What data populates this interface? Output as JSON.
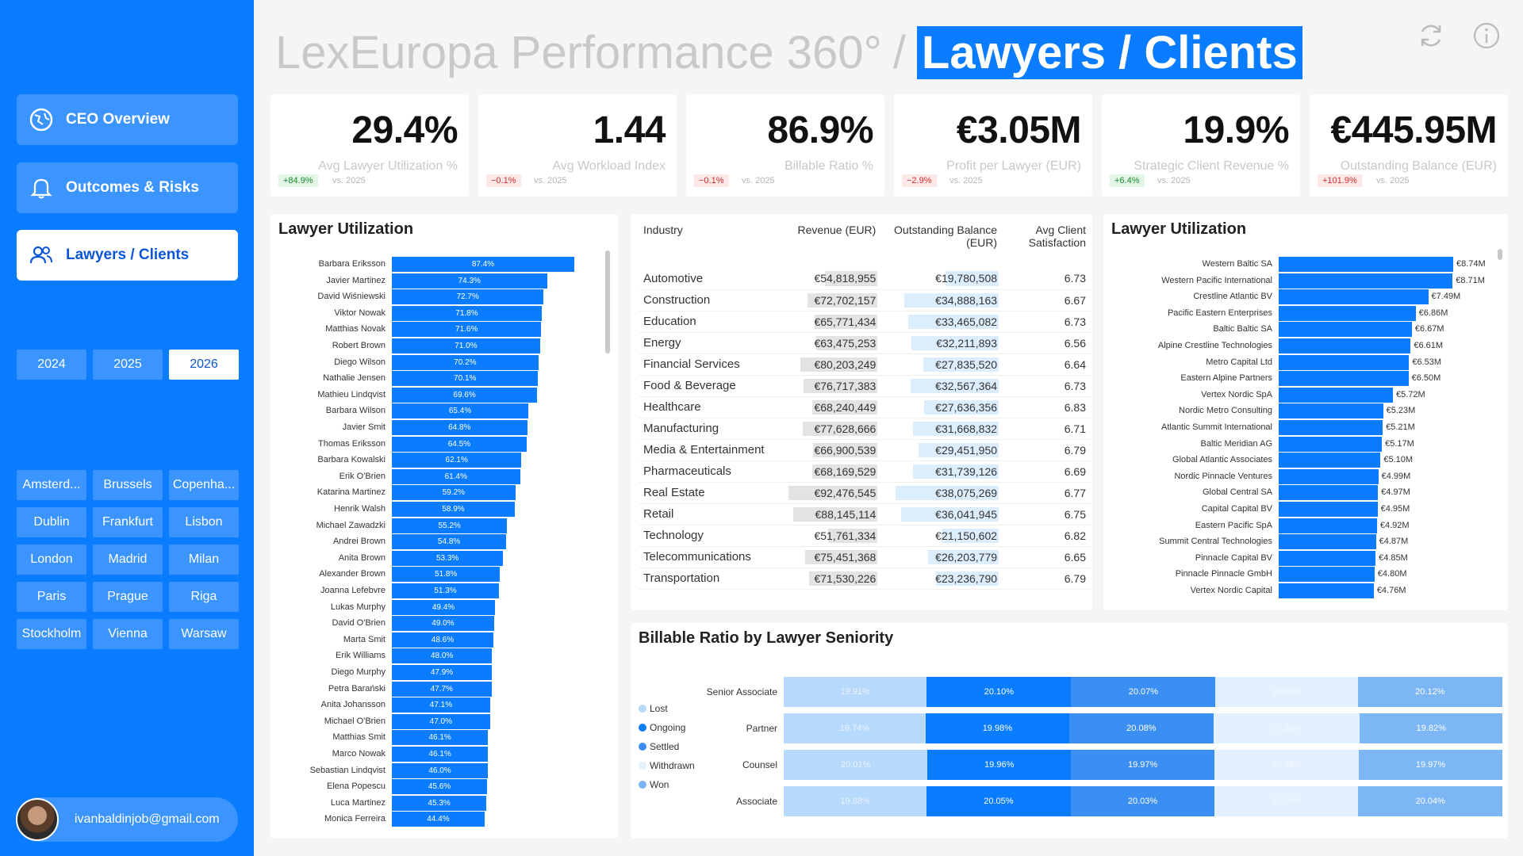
{
  "sidebar": {
    "nav": [
      {
        "label": "CEO Overview",
        "icon": "globe-icon",
        "active": false
      },
      {
        "label": "Outcomes & Risks",
        "icon": "bell-icon",
        "active": false
      },
      {
        "label": "Lawyers / Clients",
        "icon": "users-icon",
        "active": true
      }
    ],
    "years": [
      {
        "label": "2024",
        "active": false
      },
      {
        "label": "2025",
        "active": false
      },
      {
        "label": "2026",
        "active": true
      }
    ],
    "cities": [
      "Amsterd...",
      "Brussels",
      "Copenha...",
      "Dublin",
      "Frankfurt",
      "Lisbon",
      "London",
      "Madrid",
      "Milan",
      "Paris",
      "Prague",
      "Riga",
      "Stockholm",
      "Vienna",
      "Warsaw"
    ],
    "user_email": "ivanbaldinjob@gmail.com"
  },
  "header": {
    "title_prefix": "LexEuropa Performance 360°",
    "separator": "/",
    "title_page": "Lawyers / Clients",
    "icons": [
      "refresh-icon",
      "info-icon"
    ]
  },
  "kpis": [
    {
      "value": "29.4%",
      "label": "Avg Lawyer Utilization %",
      "delta": "+84.9%",
      "delta_dir": "pos",
      "vs": "vs. 2025"
    },
    {
      "value": "1.44",
      "label": "Avg Workload Index",
      "delta": "−0.1%",
      "delta_dir": "neg",
      "vs": "vs. 2025"
    },
    {
      "value": "86.9%",
      "label": "Billable Ratio %",
      "delta": "−0.1%",
      "delta_dir": "neg",
      "vs": "vs. 2025"
    },
    {
      "value": "€3.05M",
      "label": "Profit per Lawyer (EUR)",
      "delta": "−2.9%",
      "delta_dir": "neg",
      "vs": "vs. 2025"
    },
    {
      "value": "19.9%",
      "label": "Strategic Client Revenue %",
      "delta": "+6.4%",
      "delta_dir": "pos",
      "vs": "vs. 2025"
    },
    {
      "value": "€445.95M",
      "label": "Outstanding Balance (EUR)",
      "delta": "+101.9%",
      "delta_dir": "neg",
      "vs": "vs. 2025"
    }
  ],
  "colors": {
    "accent": "#0a7cff",
    "sidebar": "#0a7cff",
    "button": "#3c95ff"
  },
  "lawyer_util": {
    "title": "Lawyer Utilization",
    "rows": [
      {
        "name": "Barbara Eriksson",
        "value": 87.4,
        "label": "87.4%"
      },
      {
        "name": "Javier Martinez",
        "value": 74.3,
        "label": "74.3%"
      },
      {
        "name": "David Wiśniewski",
        "value": 72.7,
        "label": "72.7%"
      },
      {
        "name": "Viktor Nowak",
        "value": 71.8,
        "label": "71.8%"
      },
      {
        "name": "Matthias Novak",
        "value": 71.6,
        "label": "71.6%"
      },
      {
        "name": "Robert Brown",
        "value": 71.0,
        "label": "71.0%"
      },
      {
        "name": "Diego Wilson",
        "value": 70.2,
        "label": "70.2%"
      },
      {
        "name": "Nathalie Jensen",
        "value": 70.1,
        "label": "70.1%"
      },
      {
        "name": "Mathieu Lindqvist",
        "value": 69.6,
        "label": "69.6%"
      },
      {
        "name": "Barbara Wilson",
        "value": 65.4,
        "label": "65.4%"
      },
      {
        "name": "Javier Smit",
        "value": 64.8,
        "label": "64.8%"
      },
      {
        "name": "Thomas Eriksson",
        "value": 64.5,
        "label": "64.5%"
      },
      {
        "name": "Barbara Kowalski",
        "value": 62.1,
        "label": "62.1%"
      },
      {
        "name": "Erik O'Brien",
        "value": 61.4,
        "label": "61.4%"
      },
      {
        "name": "Katarina Martinez",
        "value": 59.2,
        "label": "59.2%"
      },
      {
        "name": "Henrik Walsh",
        "value": 58.9,
        "label": "58.9%"
      },
      {
        "name": "Michael Zawadzki",
        "value": 55.2,
        "label": "55.2%"
      },
      {
        "name": "Andrei Brown",
        "value": 54.8,
        "label": "54.8%"
      },
      {
        "name": "Anita Brown",
        "value": 53.3,
        "label": "53.3%"
      },
      {
        "name": "Alexander Brown",
        "value": 51.8,
        "label": "51.8%"
      },
      {
        "name": "Joanna Lefebvre",
        "value": 51.3,
        "label": "51.3%"
      },
      {
        "name": "Lukas Murphy",
        "value": 49.4,
        "label": "49.4%"
      },
      {
        "name": "David O'Brien",
        "value": 49.0,
        "label": "49.0%"
      },
      {
        "name": "Marta Smit",
        "value": 48.6,
        "label": "48.6%"
      },
      {
        "name": "Erik Williams",
        "value": 48.0,
        "label": "48.0%"
      },
      {
        "name": "Diego Murphy",
        "value": 47.9,
        "label": "47.9%"
      },
      {
        "name": "Petra Barański",
        "value": 47.7,
        "label": "47.7%"
      },
      {
        "name": "Anita Johansson",
        "value": 47.1,
        "label": "47.1%"
      },
      {
        "name": "Michael O'Brien",
        "value": 47.0,
        "label": "47.0%"
      },
      {
        "name": "Matthias Smit",
        "value": 46.1,
        "label": "46.1%"
      },
      {
        "name": "Marco Nowak",
        "value": 46.1,
        "label": "46.1%"
      },
      {
        "name": "Sebastian Lindqvist",
        "value": 46.0,
        "label": "46.0%"
      },
      {
        "name": "Elena Popescu",
        "value": 45.6,
        "label": "45.6%"
      },
      {
        "name": "Luca Martinez",
        "value": 45.3,
        "label": "45.3%"
      },
      {
        "name": "Monica Ferreira",
        "value": 44.4,
        "label": "44.4%"
      }
    ]
  },
  "industry_table": {
    "headers": [
      "Industry",
      "Revenue (EUR)",
      "Outstanding Balance (EUR)",
      "Avg Client Satisfaction"
    ],
    "rows": [
      {
        "industry": "Automotive",
        "revenue": "€54,818,955",
        "revenue_num": 54.82,
        "balance": "€19,780,508",
        "balance_num": 19.78,
        "sat": "6.73"
      },
      {
        "industry": "Construction",
        "revenue": "€72,702,157",
        "revenue_num": 72.7,
        "balance": "€34,888,163",
        "balance_num": 34.89,
        "sat": "6.67"
      },
      {
        "industry": "Education",
        "revenue": "€65,771,434",
        "revenue_num": 65.77,
        "balance": "€33,465,082",
        "balance_num": 33.47,
        "sat": "6.73"
      },
      {
        "industry": "Energy",
        "revenue": "€63,475,253",
        "revenue_num": 63.48,
        "balance": "€32,211,893",
        "balance_num": 32.21,
        "sat": "6.56"
      },
      {
        "industry": "Financial Services",
        "revenue": "€80,203,249",
        "revenue_num": 80.2,
        "balance": "€27,835,520",
        "balance_num": 27.84,
        "sat": "6.64"
      },
      {
        "industry": "Food & Beverage",
        "revenue": "€76,717,383",
        "revenue_num": 76.72,
        "balance": "€32,567,364",
        "balance_num": 32.57,
        "sat": "6.73"
      },
      {
        "industry": "Healthcare",
        "revenue": "€68,240,449",
        "revenue_num": 68.24,
        "balance": "€27,636,356",
        "balance_num": 27.64,
        "sat": "6.83"
      },
      {
        "industry": "Manufacturing",
        "revenue": "€77,628,666",
        "revenue_num": 77.63,
        "balance": "€31,668,832",
        "balance_num": 31.67,
        "sat": "6.71"
      },
      {
        "industry": "Media & Entertainment",
        "revenue": "€66,900,539",
        "revenue_num": 66.9,
        "balance": "€29,451,950",
        "balance_num": 29.45,
        "sat": "6.79"
      },
      {
        "industry": "Pharmaceuticals",
        "revenue": "€68,169,529",
        "revenue_num": 68.17,
        "balance": "€31,739,126",
        "balance_num": 31.74,
        "sat": "6.69"
      },
      {
        "industry": "Real Estate",
        "revenue": "€92,476,545",
        "revenue_num": 92.48,
        "balance": "€38,075,269",
        "balance_num": 38.08,
        "sat": "6.77"
      },
      {
        "industry": "Retail",
        "revenue": "€88,145,114",
        "revenue_num": 88.15,
        "balance": "€36,041,945",
        "balance_num": 36.04,
        "sat": "6.75"
      },
      {
        "industry": "Technology",
        "revenue": "€51,761,334",
        "revenue_num": 51.76,
        "balance": "€21,150,602",
        "balance_num": 21.15,
        "sat": "6.82"
      },
      {
        "industry": "Telecommunications",
        "revenue": "€75,451,368",
        "revenue_num": 75.45,
        "balance": "€26,203,779",
        "balance_num": 26.2,
        "sat": "6.65"
      },
      {
        "industry": "Transportation",
        "revenue": "€71,530,226",
        "revenue_num": 71.53,
        "balance": "€23,236,790",
        "balance_num": 23.24,
        "sat": "6.79"
      }
    ]
  },
  "client_balance": {
    "title": "Lawyer Utilization",
    "rows": [
      {
        "name": "Western Baltic SA",
        "value": 8.74,
        "label": "€8.74M"
      },
      {
        "name": "Western Pacific International",
        "value": 8.71,
        "label": "€8.71M"
      },
      {
        "name": "Crestline Atlantic BV",
        "value": 7.49,
        "label": "€7.49M"
      },
      {
        "name": "Pacific Eastern Enterprises",
        "value": 6.86,
        "label": "€6.86M"
      },
      {
        "name": "Baltic Baltic SA",
        "value": 6.67,
        "label": "€6.67M"
      },
      {
        "name": "Alpine Crestline Technologies",
        "value": 6.61,
        "label": "€6.61M"
      },
      {
        "name": "Metro Capital Ltd",
        "value": 6.53,
        "label": "€6.53M"
      },
      {
        "name": "Eastern Alpine Partners",
        "value": 6.5,
        "label": "€6.50M"
      },
      {
        "name": "Vertex Nordic SpA",
        "value": 5.72,
        "label": "€5.72M"
      },
      {
        "name": "Nordic Metro Consulting",
        "value": 5.23,
        "label": "€5.23M"
      },
      {
        "name": "Atlantic Summit International",
        "value": 5.21,
        "label": "€5.21M"
      },
      {
        "name": "Baltic Meridian AG",
        "value": 5.17,
        "label": "€5.17M"
      },
      {
        "name": "Global Atlantic Associates",
        "value": 5.1,
        "label": "€5.10M"
      },
      {
        "name": "Nordic Pinnacle Ventures",
        "value": 4.99,
        "label": "€4.99M"
      },
      {
        "name": "Global Central SA",
        "value": 4.97,
        "label": "€4.97M"
      },
      {
        "name": "Capital Capital BV",
        "value": 4.95,
        "label": "€4.95M"
      },
      {
        "name": "Eastern Pacific SpA",
        "value": 4.92,
        "label": "€4.92M"
      },
      {
        "name": "Summit Central Technologies",
        "value": 4.87,
        "label": "€4.87M"
      },
      {
        "name": "Pinnacle Capital BV",
        "value": 4.85,
        "label": "€4.85M"
      },
      {
        "name": "Pinnacle Pinnacle GmbH",
        "value": 4.8,
        "label": "€4.80M"
      },
      {
        "name": "Vertex Nordic Capital",
        "value": 4.76,
        "label": "€4.76M"
      }
    ]
  },
  "billable": {
    "title": "Billable Ratio by Lawyer Seniority",
    "legend": [
      {
        "name": "Lost",
        "color": "#b7d9fb"
      },
      {
        "name": "Ongoing",
        "color": "#0a7cff"
      },
      {
        "name": "Settled",
        "color": "#3c8ff2"
      },
      {
        "name": "Withdrawn",
        "color": "#e3f0fd"
      },
      {
        "name": "Won",
        "color": "#7cb6f5"
      }
    ],
    "series_order": [
      "Lost",
      "Ongoing",
      "Settled",
      "Withdrawn",
      "Won"
    ],
    "rows": [
      {
        "category": "Senior Associate",
        "values": [
          19.91,
          20.1,
          20.07,
          19.8,
          20.12
        ],
        "labels": [
          "19.91%",
          "20.10%",
          "20.07%",
          "19.80%",
          "20.12%"
        ]
      },
      {
        "category": "Partner",
        "values": [
          19.74,
          19.98,
          20.08,
          20.38,
          19.82
        ],
        "labels": [
          "19.74%",
          "19.98%",
          "20.08%",
          "20.38%",
          "19.82%"
        ]
      },
      {
        "category": "Counsel",
        "values": [
          20.01,
          19.96,
          19.97,
          20.08,
          19.97
        ],
        "labels": [
          "20.01%",
          "19.96%",
          "19.97%",
          "20.08%",
          "19.97%"
        ]
      },
      {
        "category": "Associate",
        "values": [
          19.88,
          20.05,
          20.03,
          20.0,
          20.04
        ],
        "labels": [
          "19.88%",
          "20.05%",
          "20.03%",
          "20.00%",
          "20.04%"
        ]
      }
    ]
  },
  "chart_data": [
    {
      "type": "bar",
      "title": "Lawyer Utilization",
      "orientation": "horizontal",
      "categories": [
        "Barbara Eriksson",
        "Javier Martinez",
        "David Wiśniewski",
        "Viktor Nowak",
        "Matthias Novak",
        "Robert Brown",
        "Diego Wilson",
        "Nathalie Jensen",
        "Mathieu Lindqvist",
        "Barbara Wilson",
        "Javier Smit",
        "Thomas Eriksson",
        "Barbara Kowalski",
        "Erik O'Brien",
        "Katarina Martinez",
        "Henrik Walsh",
        "Michael Zawadzki",
        "Andrei Brown",
        "Anita Brown",
        "Alexander Brown",
        "Joanna Lefebvre",
        "Lukas Murphy",
        "David O'Brien",
        "Marta Smit",
        "Erik Williams",
        "Diego Murphy",
        "Petra Barański",
        "Anita Johansson",
        "Michael O'Brien",
        "Matthias Smit",
        "Marco Nowak",
        "Sebastian Lindqvist",
        "Elena Popescu",
        "Luca Martinez",
        "Monica Ferreira"
      ],
      "values": [
        87.4,
        74.3,
        72.7,
        71.8,
        71.6,
        71.0,
        70.2,
        70.1,
        69.6,
        65.4,
        64.8,
        64.5,
        62.1,
        61.4,
        59.2,
        58.9,
        55.2,
        54.8,
        53.3,
        51.8,
        51.3,
        49.4,
        49.0,
        48.6,
        48.0,
        47.9,
        47.7,
        47.1,
        47.0,
        46.1,
        46.1,
        46.0,
        45.6,
        45.3,
        44.4
      ]
    },
    {
      "type": "bar",
      "title": "Lawyer Utilization",
      "orientation": "horizontal",
      "categories": [
        "Western Baltic SA",
        "Western Pacific International",
        "Crestline Atlantic BV",
        "Pacific Eastern Enterprises",
        "Baltic Baltic SA",
        "Alpine Crestline Technologies",
        "Metro Capital Ltd",
        "Eastern Alpine Partners",
        "Vertex Nordic SpA",
        "Nordic Metro Consulting",
        "Atlantic Summit International",
        "Baltic Meridian AG",
        "Global Atlantic Associates",
        "Nordic Pinnacle Ventures",
        "Global Central SA",
        "Capital Capital BV",
        "Eastern Pacific SpA",
        "Summit Central Technologies",
        "Pinnacle Capital BV",
        "Pinnacle Pinnacle GmbH",
        "Vertex Nordic Capital"
      ],
      "values": [
        8.74,
        8.71,
        7.49,
        6.86,
        6.67,
        6.61,
        6.53,
        6.5,
        5.72,
        5.23,
        5.21,
        5.17,
        5.1,
        4.99,
        4.97,
        4.95,
        4.92,
        4.87,
        4.85,
        4.8,
        4.76
      ]
    },
    {
      "type": "bar",
      "title": "Billable Ratio by Lawyer Seniority",
      "stacked": true,
      "orientation": "horizontal",
      "categories": [
        "Senior Associate",
        "Partner",
        "Counsel",
        "Associate"
      ],
      "series": [
        {
          "name": "Lost",
          "values": [
            19.91,
            19.74,
            20.01,
            19.88
          ]
        },
        {
          "name": "Ongoing",
          "values": [
            20.1,
            19.98,
            19.96,
            20.05
          ]
        },
        {
          "name": "Settled",
          "values": [
            20.07,
            20.08,
            19.97,
            20.03
          ]
        },
        {
          "name": "Withdrawn",
          "values": [
            19.8,
            20.38,
            20.08,
            20.0
          ]
        },
        {
          "name": "Won",
          "values": [
            20.12,
            19.82,
            19.97,
            20.04
          ]
        }
      ]
    }
  ]
}
